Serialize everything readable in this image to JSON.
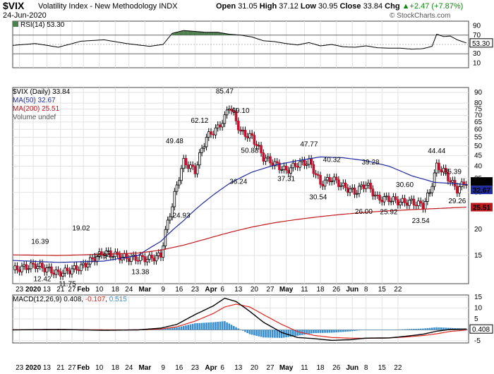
{
  "header": {
    "symbol": "$VIX",
    "name": "Volatility Index - New Methodology INDX",
    "date": "24-Jun-2020",
    "open_label": "Open",
    "open": "31.05",
    "high_label": "High",
    "high": "37.12",
    "low_label": "Low",
    "low": "30.95",
    "close_label": "Close",
    "close": "33.84",
    "chg_label": "Chg",
    "chg": "+2.47 (+7.87%)",
    "copyright": "© StockCharts.com",
    "up_arrow": "up-triangle-icon"
  },
  "rsi_panel": {
    "legend": "RSI(14) 53.30",
    "ticks": [
      "90",
      "70",
      "50",
      "30",
      "10"
    ],
    "tick_values": [
      90,
      70,
      50,
      30,
      10
    ],
    "current_label": "53.30",
    "current": 53.3,
    "overbought": 70,
    "oversold": 30,
    "line_color": "#000000",
    "shade_color": "#4f7f4f"
  },
  "price_panel": {
    "legend_main": "$VIX (Daily) 33.84",
    "legend_ma50": "MA(50) 32.67",
    "legend_ma200": "MA(200) 25.51",
    "legend_volume": "Volume undef",
    "ticks": [
      "90",
      "80",
      "75",
      "70",
      "65",
      "60",
      "55",
      "50",
      "45",
      "40",
      "35",
      "30",
      "25",
      "20",
      "15"
    ],
    "tick_values": [
      90,
      80,
      75,
      70,
      65,
      60,
      55,
      50,
      45,
      40,
      35,
      30,
      25,
      20,
      15
    ],
    "badges": [
      {
        "text": "33.84",
        "value": 33.84,
        "color": "#000000"
      },
      {
        "text": "32.67",
        "value": 32.67,
        "color": "#1f2a9c"
      },
      {
        "text": "25.51",
        "value": 25.51,
        "color": "#c0181f"
      }
    ],
    "annotations": [
      {
        "text": "16.39",
        "day": 12,
        "value": 16.39,
        "side": "above"
      },
      {
        "text": "12.42",
        "day": 13,
        "value": 12.42,
        "side": "below"
      },
      {
        "text": "11.75",
        "day": 24,
        "value": 11.75,
        "side": "below"
      },
      {
        "text": "19.02",
        "day": 30,
        "value": 19.02,
        "side": "above"
      },
      {
        "text": "14.94",
        "day": 34,
        "value": 14.94,
        "side": "right"
      },
      {
        "text": "13.38",
        "day": 56,
        "value": 13.38,
        "side": "below"
      },
      {
        "text": "49.48",
        "day": 71,
        "value": 49.48,
        "side": "above"
      },
      {
        "text": "24.93",
        "day": 74,
        "value": 24.93,
        "side": "below"
      },
      {
        "text": "62.12",
        "day": 82,
        "value": 62.12,
        "side": "above"
      },
      {
        "text": "85.47",
        "day": 93,
        "value": 85.47,
        "side": "above"
      },
      {
        "text": "69.10",
        "day": 100,
        "value": 69.1,
        "side": "above"
      },
      {
        "text": "36.24",
        "day": 99,
        "value": 36.24,
        "side": "below"
      },
      {
        "text": "50.88",
        "day": 104,
        "value": 50.88,
        "side": "below"
      },
      {
        "text": "47.77",
        "day": 130,
        "value": 47.77,
        "side": "above"
      },
      {
        "text": "37.31",
        "day": 120,
        "value": 37.31,
        "side": "below"
      },
      {
        "text": "40.32",
        "day": 140,
        "value": 40.32,
        "side": "above"
      },
      {
        "text": "30.54",
        "day": 134,
        "value": 30.54,
        "side": "below"
      },
      {
        "text": "39.28",
        "day": 157,
        "value": 39.28,
        "side": "above"
      },
      {
        "text": "26.00",
        "day": 154,
        "value": 26.0,
        "side": "below"
      },
      {
        "text": "30.60",
        "day": 172,
        "value": 30.6,
        "side": "above"
      },
      {
        "text": "25.92",
        "day": 165,
        "value": 25.92,
        "side": "below"
      },
      {
        "text": "23.54",
        "day": 179,
        "value": 23.54,
        "side": "below"
      },
      {
        "text": "44.44",
        "day": 186,
        "value": 44.44,
        "side": "above"
      },
      {
        "text": "35.39",
        "day": 193,
        "value": 35.39,
        "side": "above"
      },
      {
        "text": "29.26",
        "day": 195,
        "value": 29.26,
        "side": "below"
      }
    ]
  },
  "macd_panel": {
    "legend_prefix": "MACD(12,26,9)",
    "legend_macd": "0.408",
    "legend_signal": "-0.107",
    "legend_hist": "0.515",
    "ticks": [
      "15",
      "10",
      "5",
      "0",
      "-5"
    ],
    "tick_values": [
      15,
      10,
      5,
      0,
      -5
    ],
    "current_label": "0.408",
    "current": 0.408,
    "macd_color": "#000000",
    "signal_color": "#e0251f",
    "hist_color": "#3a8fd0"
  },
  "x_axis": {
    "labels": [
      "23",
      "2020",
      "13",
      "21",
      "27",
      "Feb",
      "10",
      "18",
      "24",
      "Mar",
      "9",
      "16",
      "23",
      "Apr",
      "6",
      "13",
      "20",
      "27",
      "May",
      "11",
      "18",
      "26",
      "Jun",
      "8",
      "15",
      "22"
    ],
    "days": [
      3,
      9,
      15,
      21,
      26,
      31,
      38,
      45,
      51,
      58,
      66,
      73,
      80,
      87,
      92,
      99,
      106,
      113,
      120,
      128,
      135,
      142,
      149,
      155,
      162,
      169
    ]
  },
  "chart_data": [
    {
      "type": "candlestick",
      "title": "$VIX (Daily)",
      "series": [
        {
          "name": "$VIX (Daily)",
          "x": [
            0,
            10,
            20,
            30,
            40,
            50,
            60,
            65,
            70,
            75,
            80,
            85,
            90,
            93,
            95,
            100,
            105,
            110,
            115,
            120,
            125,
            130,
            135,
            140,
            145,
            150,
            155,
            160,
            165,
            170,
            175,
            180,
            183,
            186,
            189,
            192,
            195,
            199
          ],
          "values": [
            12.8,
            13.5,
            12.3,
            13.2,
            15.5,
            14.6,
            14.5,
            15.0,
            26,
            42,
            38,
            55,
            61,
            68,
            78,
            58,
            55,
            44,
            41,
            38,
            41,
            42,
            33,
            35,
            32,
            30,
            33,
            28,
            28,
            27,
            27,
            26,
            30,
            40,
            38,
            34,
            31,
            33.84
          ]
        },
        {
          "name": "MA(50)",
          "x": [
            0,
            20,
            40,
            55,
            65,
            75,
            85,
            95,
            105,
            115,
            125,
            135,
            145,
            155,
            165,
            175,
            185,
            195,
            199
          ],
          "values": [
            14.2,
            13.9,
            14.1,
            15.0,
            17.5,
            22,
            27.5,
            33,
            37.5,
            40.5,
            42.5,
            44.3,
            43.9,
            42.5,
            40,
            36,
            33.5,
            33,
            32.67
          ]
        },
        {
          "name": "MA(200)",
          "x": [
            0,
            20,
            40,
            55,
            65,
            75,
            85,
            95,
            105,
            115,
            125,
            135,
            145,
            155,
            165,
            175,
            185,
            195,
            199
          ],
          "values": [
            15.1,
            15.0,
            15.2,
            15.4,
            15.9,
            16.8,
            18.0,
            19.3,
            20.5,
            21.5,
            22.3,
            23.0,
            23.6,
            24.1,
            24.5,
            24.8,
            25.1,
            25.4,
            25.51
          ]
        }
      ],
      "ylim": [
        11,
        95
      ],
      "scale": "log"
    },
    {
      "type": "line",
      "title": "RSI(14)",
      "series": [
        {
          "name": "RSI(14)",
          "x": [
            0,
            10,
            20,
            30,
            40,
            50,
            60,
            66,
            70,
            75,
            80,
            85,
            90,
            95,
            100,
            105,
            110,
            115,
            120,
            125,
            130,
            135,
            140,
            145,
            150,
            155,
            160,
            165,
            170,
            175,
            180,
            184,
            186,
            189,
            192,
            195,
            199
          ],
          "values": [
            48,
            52,
            44,
            57,
            60,
            52,
            46,
            50,
            74,
            80,
            78,
            76,
            76,
            72,
            70,
            66,
            58,
            56,
            52,
            49,
            54,
            47,
            50,
            45,
            44,
            47,
            43,
            42,
            42,
            40,
            41,
            46,
            72,
            67,
            68,
            60,
            53.3
          ]
        }
      ],
      "ylim": [
        0,
        100
      ]
    },
    {
      "type": "line",
      "title": "MACD(12,26,9)",
      "series": [
        {
          "name": "MACD",
          "x": [
            0,
            20,
            40,
            55,
            65,
            72,
            80,
            88,
            93,
            98,
            104,
            110,
            118,
            125,
            132,
            140,
            148,
            155,
            165,
            172,
            180,
            186,
            192,
            199
          ],
          "values": [
            0,
            0.2,
            -0.2,
            0,
            0.8,
            2.5,
            7,
            11,
            14.5,
            13,
            8.5,
            3.5,
            -1.2,
            -3.5,
            -4,
            -4.8,
            -4.5,
            -3.8,
            -3.7,
            -3,
            -2,
            -0.6,
            0.2,
            0.408
          ]
        },
        {
          "name": "Signal",
          "x": [
            0,
            20,
            40,
            55,
            65,
            72,
            80,
            88,
            93,
            98,
            104,
            110,
            118,
            125,
            132,
            140,
            148,
            155,
            165,
            172,
            180,
            186,
            192,
            199
          ],
          "values": [
            0,
            0.1,
            0,
            0,
            0.4,
            1.4,
            4,
            7.5,
            10.5,
            11.8,
            10.5,
            7,
            2.5,
            -0.8,
            -2.5,
            -3.5,
            -3.8,
            -3.9,
            -3.7,
            -3.3,
            -2.6,
            -1.8,
            -0.7,
            -0.107
          ]
        },
        {
          "name": "Histogram",
          "x": [
            0,
            20,
            40,
            55,
            65,
            72,
            80,
            88,
            93,
            98,
            104,
            110,
            118,
            125,
            132,
            140,
            148,
            155,
            165,
            172,
            180,
            186,
            192,
            199
          ],
          "values": [
            0,
            0.1,
            -0.2,
            0,
            0.4,
            1.1,
            3,
            3.5,
            4,
            1.2,
            -2,
            -3.5,
            -3.7,
            -2.7,
            -1.5,
            -1.3,
            -0.7,
            0.1,
            0,
            0.3,
            0.6,
            1.2,
            0.9,
            0.515
          ]
        }
      ],
      "ylim": [
        -6,
        16
      ]
    }
  ]
}
